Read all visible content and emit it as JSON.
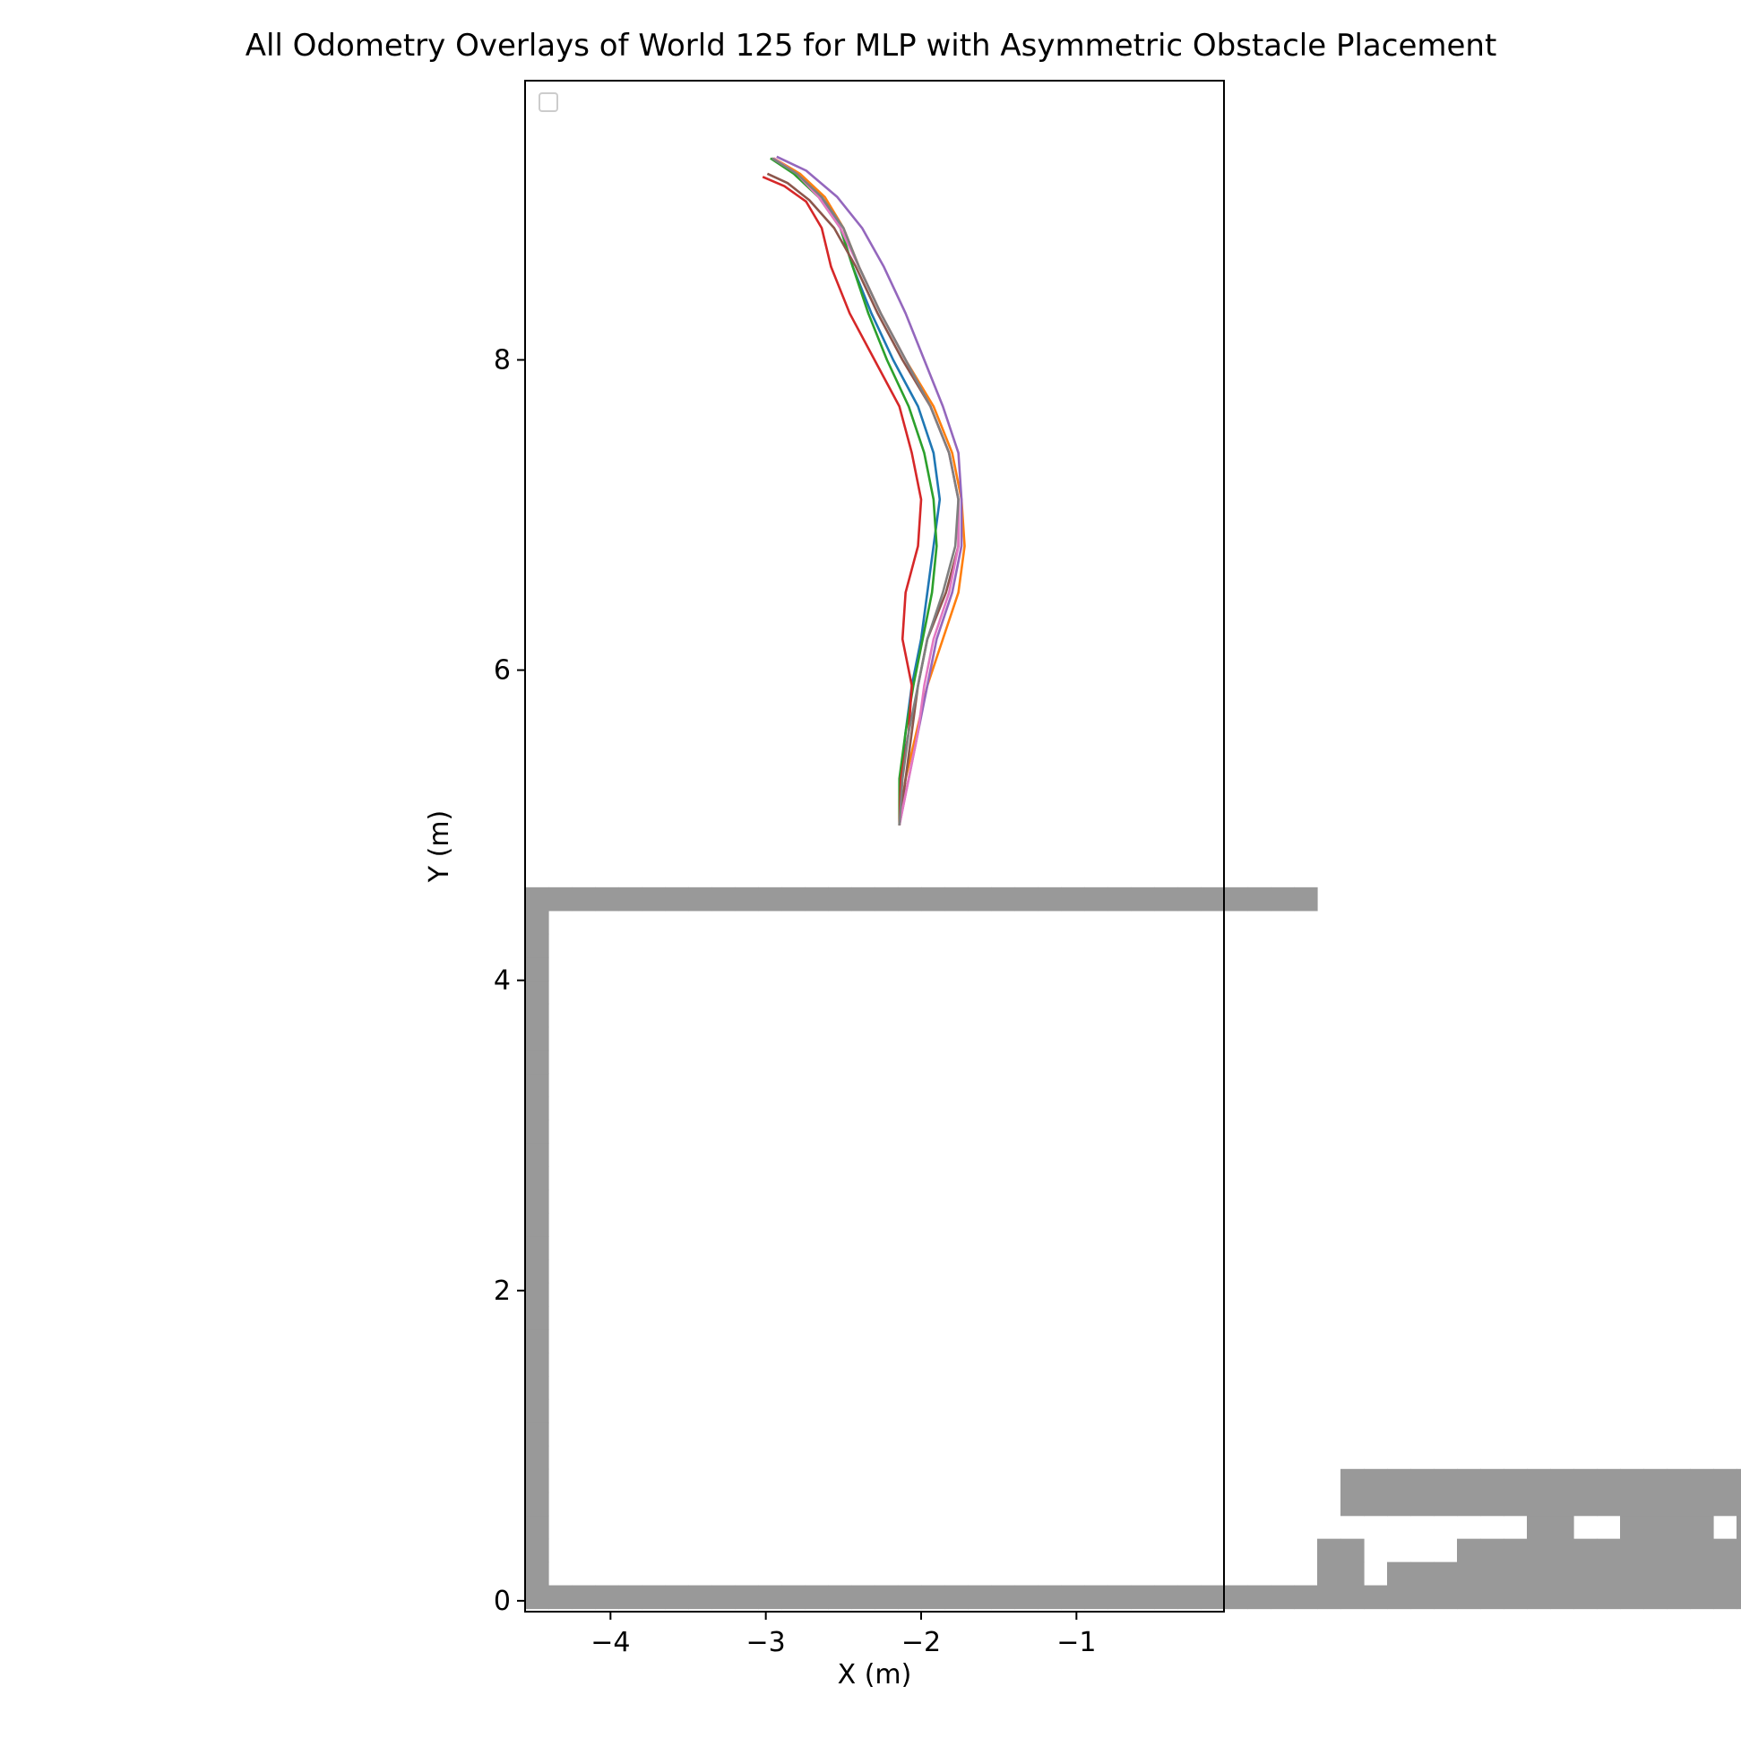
{
  "chart_data": {
    "type": "line",
    "title": "All Odometry Overlays of World 125 for MLP with Asymmetric Obstacle Placement",
    "xlabel": "X (m)",
    "ylabel": "Y (m)",
    "xlim": [
      -4.55,
      -0.05
    ],
    "ylim": [
      -0.07,
      9.8
    ],
    "xticks": [
      -4,
      -3,
      -2,
      -1
    ],
    "xtick_labels": [
      "−4",
      "−3",
      "−2",
      "−1"
    ],
    "yticks": [
      0,
      2,
      4,
      6,
      8
    ],
    "ytick_labels": [
      "0",
      "2",
      "4",
      "6",
      "8"
    ],
    "legend": {
      "placement": "top-left",
      "entries": []
    },
    "occupancy_grid": {
      "origin_x": -4.55,
      "origin_y": -0.05,
      "resolution": 0.15,
      "color": "#999999",
      "cells": [
        [
          0,
          1,
          30
        ],
        [
          1,
          30,
          30
        ],
        [
          2,
          30,
          30
        ],
        [
          3,
          30,
          30
        ],
        [
          4,
          30,
          30
        ],
        [
          5,
          30,
          30
        ],
        [
          6,
          30,
          30
        ],
        [
          7,
          30,
          30
        ],
        [
          8,
          30,
          30
        ],
        [
          9,
          30,
          30
        ],
        [
          10,
          30,
          30
        ],
        [
          11,
          30,
          30
        ],
        [
          12,
          30,
          30
        ],
        [
          13,
          30,
          30
        ],
        [
          14,
          30,
          30
        ],
        [
          15,
          30,
          30
        ],
        [
          16,
          30,
          30
        ],
        [
          17,
          30,
          30
        ],
        [
          18,
          30,
          30
        ],
        [
          19,
          30,
          30
        ],
        [
          20,
          30,
          30
        ],
        [
          21,
          30,
          30
        ],
        [
          22,
          30,
          30
        ],
        [
          23,
          30,
          30
        ],
        [
          24,
          30,
          30
        ],
        [
          25,
          30,
          30
        ],
        [
          26,
          30,
          30
        ],
        [
          27,
          30,
          30
        ],
        [
          28,
          30,
          30
        ],
        [
          29,
          30,
          30
        ],
        [
          30,
          30,
          30
        ],
        [
          31,
          30,
          30
        ],
        [
          32,
          30,
          30
        ],
        [
          33,
          30,
          30
        ],
        [
          0,
          0,
          0
        ],
        [
          1,
          0,
          0
        ],
        [
          2,
          0,
          0
        ],
        [
          3,
          0,
          0
        ],
        [
          4,
          0,
          0
        ],
        [
          5,
          0,
          0
        ],
        [
          6,
          0,
          0
        ],
        [
          7,
          0,
          0
        ],
        [
          8,
          0,
          0
        ],
        [
          9,
          0,
          0
        ],
        [
          10,
          0,
          0
        ],
        [
          11,
          0,
          0
        ],
        [
          12,
          0,
          0
        ],
        [
          13,
          0,
          0
        ],
        [
          14,
          0,
          0
        ],
        [
          15,
          0,
          0
        ],
        [
          16,
          0,
          0
        ],
        [
          17,
          0,
          0
        ],
        [
          18,
          0,
          0
        ],
        [
          19,
          0,
          0
        ],
        [
          20,
          0,
          0
        ],
        [
          21,
          0,
          0
        ],
        [
          22,
          0,
          0
        ],
        [
          23,
          0,
          0
        ],
        [
          24,
          0,
          0
        ],
        [
          25,
          0,
          0
        ],
        [
          26,
          0,
          0
        ],
        [
          27,
          0,
          0
        ],
        [
          28,
          0,
          0
        ],
        [
          29,
          0,
          0
        ],
        [
          30,
          0,
          0
        ],
        [
          31,
          0,
          0
        ],
        [
          32,
          0,
          0
        ],
        [
          33,
          0,
          0
        ],
        [
          34,
          0,
          1
        ],
        [
          35,
          0,
          1
        ],
        [
          36,
          0,
          0
        ],
        [
          37,
          0,
          0
        ],
        [
          38,
          0,
          1
        ],
        [
          39,
          0,
          1
        ],
        [
          40,
          0,
          2
        ],
        [
          41,
          0,
          2
        ],
        [
          42,
          0,
          2
        ],
        [
          43,
          0,
          2
        ],
        [
          44,
          0,
          0
        ],
        [
          45,
          0,
          0
        ],
        [
          46,
          0,
          0
        ],
        [
          47,
          0,
          3
        ],
        [
          48,
          0,
          3
        ],
        [
          49,
          0,
          3
        ],
        [
          50,
          0,
          3
        ],
        [
          51,
          0,
          0
        ],
        [
          52,
          0,
          0
        ],
        [
          53,
          0,
          0
        ],
        [
          54,
          0,
          3
        ],
        [
          55,
          0,
          3
        ],
        [
          56,
          0,
          3
        ],
        [
          57,
          0,
          3
        ],
        [
          58,
          0,
          3
        ],
        [
          59,
          0,
          3
        ],
        [
          60,
          0,
          0
        ],
        [
          61,
          0,
          0
        ],
        [
          62,
          0,
          0
        ],
        [
          63,
          0,
          0
        ],
        [
          34,
          2,
          2
        ],
        [
          35,
          0,
          2
        ],
        [
          35,
          4,
          5
        ],
        [
          36,
          4,
          5
        ],
        [
          37,
          0,
          1
        ],
        [
          37,
          4,
          5
        ],
        [
          38,
          0,
          1
        ],
        [
          38,
          4,
          5
        ],
        [
          39,
          0,
          1
        ],
        [
          39,
          4,
          5
        ],
        [
          40,
          0,
          1
        ],
        [
          40,
          4,
          5
        ],
        [
          41,
          0,
          2
        ],
        [
          41,
          4,
          5
        ],
        [
          42,
          0,
          2
        ],
        [
          42,
          4,
          5
        ],
        [
          43,
          0,
          3
        ],
        [
          43,
          4,
          5
        ],
        [
          44,
          0,
          3
        ],
        [
          44,
          4,
          5
        ],
        [
          45,
          0,
          2
        ],
        [
          45,
          4,
          5
        ],
        [
          46,
          0,
          2
        ],
        [
          46,
          4,
          5
        ],
        [
          47,
          0,
          1
        ],
        [
          47,
          4,
          5
        ],
        [
          48,
          0,
          1
        ],
        [
          48,
          4,
          5
        ],
        [
          49,
          0,
          1
        ],
        [
          49,
          4,
          5
        ],
        [
          50,
          0,
          2
        ],
        [
          50,
          4,
          5
        ],
        [
          51,
          0,
          2
        ],
        [
          51,
          4,
          5
        ],
        [
          52,
          0,
          3
        ],
        [
          52,
          4,
          5
        ],
        [
          53,
          0,
          3
        ],
        [
          53,
          4,
          5
        ],
        [
          54,
          0,
          2
        ],
        [
          54,
          4,
          5
        ],
        [
          55,
          0,
          2
        ],
        [
          55,
          4,
          5
        ],
        [
          56,
          0,
          3
        ],
        [
          56,
          4,
          5
        ],
        [
          57,
          0,
          3
        ],
        [
          57,
          4,
          5
        ],
        [
          58,
          0,
          2
        ],
        [
          58,
          4,
          5
        ],
        [
          59,
          0,
          2
        ],
        [
          59,
          4,
          5
        ],
        [
          60,
          0,
          2
        ],
        [
          60,
          4,
          5
        ],
        [
          61,
          0,
          2
        ],
        [
          61,
          4,
          5
        ],
        [
          62,
          0,
          1
        ],
        [
          62,
          4,
          5
        ],
        [
          63,
          0,
          1
        ],
        [
          63,
          4,
          5
        ]
      ]
    },
    "trajectories": [
      {
        "color": "#1f77b4",
        "points": [
          [
            -2.14,
            5.0
          ],
          [
            -2.13,
            5.3
          ],
          [
            -2.1,
            5.6
          ],
          [
            -2.06,
            5.9
          ],
          [
            -2.0,
            6.2
          ],
          [
            -1.96,
            6.5
          ],
          [
            -1.92,
            6.8
          ],
          [
            -1.88,
            7.1
          ],
          [
            -1.92,
            7.4
          ],
          [
            -2.02,
            7.7
          ],
          [
            -2.18,
            8.0
          ],
          [
            -2.32,
            8.3
          ],
          [
            -2.44,
            8.6
          ],
          [
            -2.52,
            8.85
          ],
          [
            -2.64,
            9.05
          ],
          [
            -2.8,
            9.2
          ],
          [
            -2.95,
            9.3
          ]
        ]
      },
      {
        "color": "#ff7f0e",
        "points": [
          [
            -2.14,
            5.0
          ],
          [
            -2.1,
            5.3
          ],
          [
            -2.03,
            5.6
          ],
          [
            -1.96,
            5.9
          ],
          [
            -1.86,
            6.2
          ],
          [
            -1.76,
            6.5
          ],
          [
            -1.72,
            6.8
          ],
          [
            -1.74,
            7.1
          ],
          [
            -1.8,
            7.4
          ],
          [
            -1.92,
            7.7
          ],
          [
            -2.1,
            8.0
          ],
          [
            -2.26,
            8.3
          ],
          [
            -2.4,
            8.6
          ],
          [
            -2.5,
            8.85
          ],
          [
            -2.62,
            9.05
          ],
          [
            -2.78,
            9.2
          ],
          [
            -2.95,
            9.3
          ]
        ]
      },
      {
        "color": "#2ca02c",
        "points": [
          [
            -2.14,
            5.0
          ],
          [
            -2.14,
            5.3
          ],
          [
            -2.1,
            5.6
          ],
          [
            -2.05,
            5.9
          ],
          [
            -1.99,
            6.2
          ],
          [
            -1.93,
            6.5
          ],
          [
            -1.9,
            6.8
          ],
          [
            -1.92,
            7.1
          ],
          [
            -1.98,
            7.4
          ],
          [
            -2.08,
            7.7
          ],
          [
            -2.22,
            8.0
          ],
          [
            -2.34,
            8.3
          ],
          [
            -2.44,
            8.6
          ],
          [
            -2.52,
            8.85
          ],
          [
            -2.66,
            9.05
          ],
          [
            -2.82,
            9.2
          ],
          [
            -2.97,
            9.3
          ]
        ]
      },
      {
        "color": "#d62728",
        "points": [
          [
            -2.14,
            5.0
          ],
          [
            -2.13,
            5.3
          ],
          [
            -2.08,
            5.6
          ],
          [
            -2.06,
            5.9
          ],
          [
            -2.12,
            6.2
          ],
          [
            -2.1,
            6.5
          ],
          [
            -2.02,
            6.8
          ],
          [
            -2.0,
            7.1
          ],
          [
            -2.06,
            7.4
          ],
          [
            -2.14,
            7.7
          ],
          [
            -2.3,
            8.0
          ],
          [
            -2.46,
            8.3
          ],
          [
            -2.58,
            8.6
          ],
          [
            -2.64,
            8.85
          ],
          [
            -2.74,
            9.02
          ],
          [
            -2.88,
            9.12
          ],
          [
            -3.02,
            9.18
          ]
        ]
      },
      {
        "color": "#9467bd",
        "points": [
          [
            -2.14,
            5.0
          ],
          [
            -2.08,
            5.3
          ],
          [
            -2.02,
            5.6
          ],
          [
            -1.96,
            5.9
          ],
          [
            -1.9,
            6.2
          ],
          [
            -1.8,
            6.5
          ],
          [
            -1.74,
            6.8
          ],
          [
            -1.74,
            7.1
          ],
          [
            -1.76,
            7.4
          ],
          [
            -1.86,
            7.7
          ],
          [
            -1.98,
            8.0
          ],
          [
            -2.1,
            8.3
          ],
          [
            -2.24,
            8.6
          ],
          [
            -2.38,
            8.85
          ],
          [
            -2.54,
            9.05
          ],
          [
            -2.74,
            9.22
          ],
          [
            -2.93,
            9.31
          ]
        ]
      },
      {
        "color": "#8c564b",
        "points": [
          [
            -2.14,
            5.0
          ],
          [
            -2.1,
            5.3
          ],
          [
            -2.06,
            5.6
          ],
          [
            -2.02,
            5.9
          ],
          [
            -1.96,
            6.2
          ],
          [
            -1.84,
            6.5
          ],
          [
            -1.76,
            6.8
          ],
          [
            -1.76,
            7.1
          ],
          [
            -1.82,
            7.4
          ],
          [
            -1.94,
            7.7
          ],
          [
            -2.12,
            8.0
          ],
          [
            -2.28,
            8.3
          ],
          [
            -2.42,
            8.6
          ],
          [
            -2.56,
            8.85
          ],
          [
            -2.72,
            9.03
          ],
          [
            -2.86,
            9.14
          ],
          [
            -2.99,
            9.2
          ]
        ]
      },
      {
        "color": "#e377c2",
        "points": [
          [
            -2.14,
            5.0
          ],
          [
            -2.08,
            5.3
          ],
          [
            -2.02,
            5.6
          ],
          [
            -1.98,
            5.9
          ],
          [
            -1.92,
            6.2
          ],
          [
            -1.82,
            6.5
          ],
          [
            -1.76,
            6.8
          ],
          [
            -1.76,
            7.1
          ],
          [
            -1.82,
            7.4
          ],
          [
            -1.94,
            7.7
          ],
          [
            -2.1,
            8.0
          ],
          [
            -2.26,
            8.3
          ],
          [
            -2.4,
            8.6
          ],
          [
            -2.52,
            8.85
          ],
          [
            -2.66,
            9.05
          ],
          [
            -2.8,
            9.2
          ],
          [
            -2.95,
            9.3
          ]
        ]
      },
      {
        "color": "#7f7f7f",
        "points": [
          [
            -2.14,
            5.0
          ],
          [
            -2.12,
            5.3
          ],
          [
            -2.08,
            5.6
          ],
          [
            -2.02,
            5.9
          ],
          [
            -1.96,
            6.2
          ],
          [
            -1.86,
            6.5
          ],
          [
            -1.78,
            6.8
          ],
          [
            -1.76,
            7.1
          ],
          [
            -1.82,
            7.4
          ],
          [
            -1.94,
            7.7
          ],
          [
            -2.1,
            8.0
          ],
          [
            -2.26,
            8.3
          ],
          [
            -2.4,
            8.6
          ],
          [
            -2.5,
            8.85
          ],
          [
            -2.64,
            9.05
          ],
          [
            -2.8,
            9.2
          ],
          [
            -2.96,
            9.3
          ]
        ]
      }
    ]
  }
}
